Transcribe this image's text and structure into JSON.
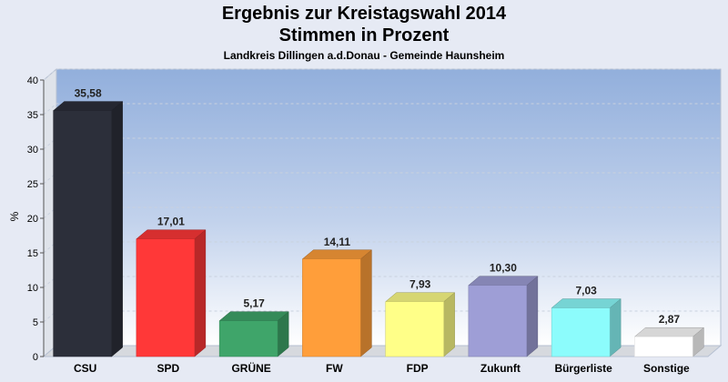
{
  "chart_data": {
    "type": "bar",
    "title": "Ergebnis zur Kreistagswahl 2014",
    "subtitle": "Stimmen in Prozent",
    "caption": "Landkreis Dillingen a.d.Donau - Gemeinde Haunsheim",
    "ylabel": "%",
    "xlabel": "",
    "ylim": [
      0,
      40
    ],
    "yticks": [
      0,
      5,
      10,
      15,
      20,
      25,
      30,
      35,
      40
    ],
    "grid": true,
    "legend": "none",
    "categories": [
      "CSU",
      "SPD",
      "GRÜNE",
      "FW",
      "FDP",
      "Zukunft",
      "Bürgerliste",
      "Sonstige"
    ],
    "values": [
      35.58,
      17.01,
      5.17,
      14.11,
      7.93,
      10.3,
      7.03,
      2.87
    ],
    "value_labels": [
      "35,58",
      "17,01",
      "5,17",
      "14,11",
      "7,93",
      "10,30",
      "7,03",
      "2,87"
    ],
    "colors": [
      "#2c2f3a",
      "#ff3838",
      "#3fa56a",
      "#ff9e3a",
      "#ffff88",
      "#9e9ed6",
      "#8cfcfc",
      "#ffffff"
    ]
  }
}
